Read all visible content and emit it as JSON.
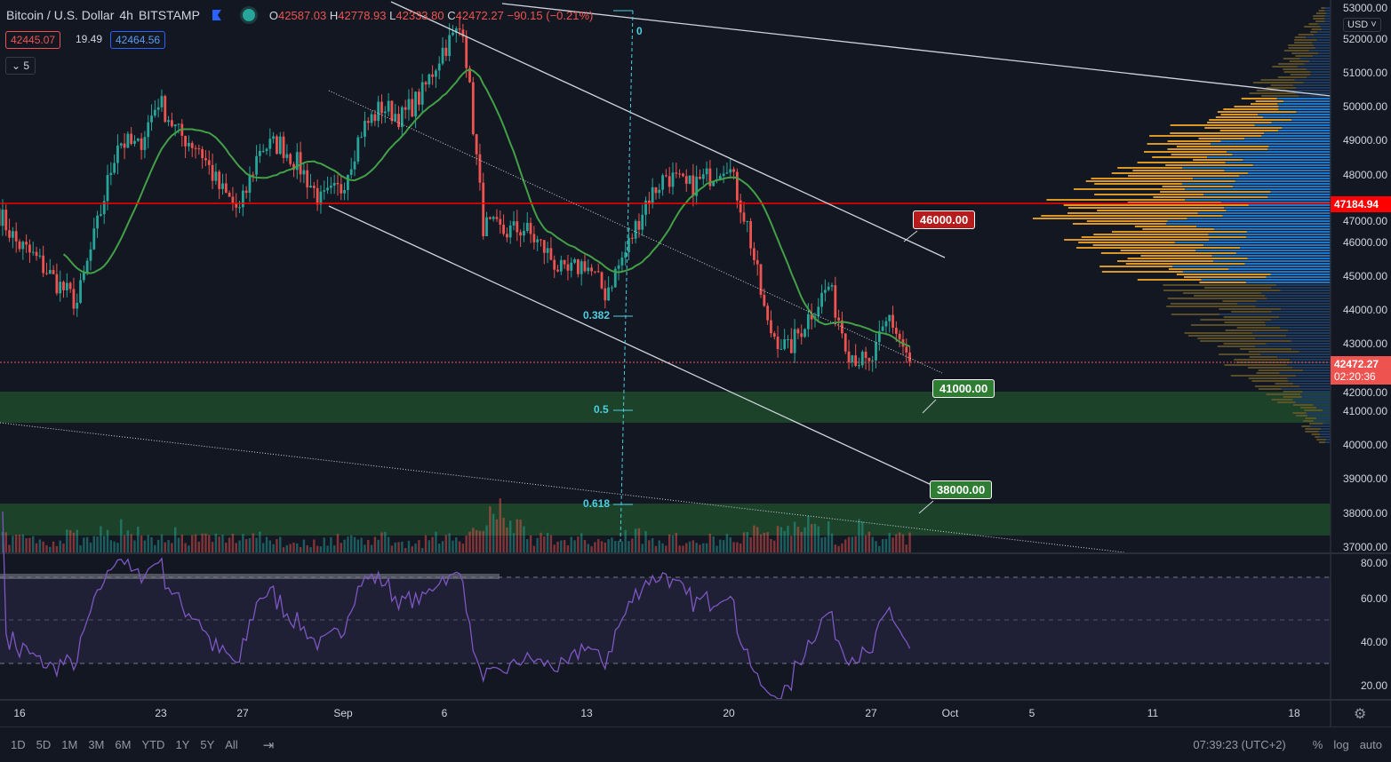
{
  "header": {
    "symbol": "Bitcoin / U.S. Dollar",
    "interval": "4h",
    "exchange": "BITSTAMP",
    "o_label": "O",
    "open": "42587.03",
    "h_label": "H",
    "high": "42778.93",
    "l_label": "L",
    "low": "42333.80",
    "c_label": "C",
    "close": "42472.27",
    "change": "−90.15 (−0.21%)",
    "bid": "42445.07",
    "spread": "19.49",
    "ask": "42464.56",
    "indicators_toggle": "5"
  },
  "price_axis": {
    "currency": "USD",
    "labels": [
      "53000.00",
      "52000.00",
      "51000.00",
      "50000.00",
      "49000.00",
      "48000.00",
      "47000.00",
      "46000.00",
      "45000.00",
      "44000.00",
      "43000.00",
      "42000.00",
      "41000.00",
      "40000.00",
      "39000.00",
      "38000.00",
      "37000.00"
    ],
    "hline_tag": "47184.94",
    "last_price_tag": "42472.27",
    "countdown": "02:20:36"
  },
  "rsi_axis": {
    "labels": [
      "80.00",
      "60.00",
      "40.00",
      "20.00"
    ]
  },
  "time_axis": {
    "labels": [
      "16",
      "23",
      "27",
      "Sep",
      "6",
      "13",
      "20",
      "27",
      "Oct",
      "5",
      "11",
      "18"
    ]
  },
  "annotations": {
    "resistance": "46000.00",
    "support1": "41000.00",
    "support2": "38000.00",
    "fib": [
      "0",
      "0.382",
      "0.5",
      "0.618"
    ]
  },
  "toolbar": {
    "ranges": [
      "1D",
      "5D",
      "1M",
      "3M",
      "6M",
      "YTD",
      "1Y",
      "5Y",
      "All"
    ],
    "clock": "07:39:23 (UTC+2)",
    "percent": "%",
    "log": "log",
    "auto": "auto"
  },
  "colors": {
    "up": "#26a69a",
    "down": "#ef5350",
    "ma": "#43a047",
    "rsi": "#7e57c2",
    "hline": "#ff0000",
    "zone": "#1f4a2b"
  },
  "chart_data": {
    "type": "candlestick",
    "title": "Bitcoin / U.S. Dollar 4h BITSTAMP",
    "x_start": "Aug 15",
    "x_step": "1 day (6 x 4h candles per day)",
    "daily_closes": [
      47000,
      46000,
      45500,
      44800,
      44200,
      46500,
      49000,
      48800,
      50200,
      49200,
      48800,
      47600,
      46900,
      48800,
      48900,
      48200,
      47200,
      47600,
      49300,
      50000,
      49700,
      50400,
      51700,
      52400,
      46500,
      46300,
      46400,
      45800,
      45000,
      45400,
      44500,
      45700,
      47200,
      48000,
      47600,
      47900,
      48400,
      46500,
      43500,
      42800,
      43800,
      44700,
      42800,
      42300,
      43800,
      42472
    ],
    "daily_volume": [
      3,
      3,
      2,
      4,
      3,
      4,
      5,
      3,
      4,
      3,
      3,
      3,
      4,
      3,
      2,
      2,
      3,
      3,
      3,
      3,
      2,
      3,
      4,
      4,
      10,
      5,
      3,
      3,
      3,
      2,
      4,
      4,
      3,
      3,
      2,
      3,
      4,
      4,
      5,
      6,
      5,
      3,
      5,
      3,
      3,
      3
    ],
    "volume_profile": {
      "price_buckets": [
        40000,
        41000,
        42000,
        43000,
        44000,
        45000,
        46000,
        47000,
        48000,
        49000,
        50000,
        51000,
        52000,
        53000
      ],
      "values": [
        5,
        12,
        30,
        45,
        50,
        70,
        85,
        100,
        75,
        60,
        40,
        20,
        12,
        4
      ]
    },
    "ylim": [
      37000,
      53000
    ],
    "indicators": [
      "MA 20",
      "RSI 14",
      "Volume",
      "Volume Profile"
    ]
  }
}
